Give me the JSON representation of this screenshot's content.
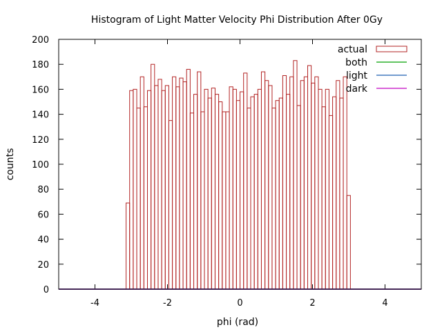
{
  "chart_data": {
    "type": "bar",
    "title": "Histogram of Light Matter Velocity Phi Distribution After 0Gy",
    "xlabel": "phi (rad)",
    "ylabel": "counts",
    "xlim": [
      -5,
      5
    ],
    "ylim": [
      0,
      200
    ],
    "x_ticks": [
      "-4",
      "-2",
      "0",
      "2",
      "4"
    ],
    "x_tick_values": [
      -4,
      -2,
      0,
      2,
      4
    ],
    "y_ticks": [
      "0",
      "20",
      "40",
      "60",
      "80",
      "100",
      "120",
      "140",
      "160",
      "180",
      "200"
    ],
    "y_tick_values": [
      0,
      20,
      40,
      60,
      80,
      100,
      120,
      140,
      160,
      180,
      200
    ],
    "bin_start": -3.1416,
    "bin_width": 0.0982,
    "legend_position": "top-right",
    "series": [
      {
        "name": "actual",
        "color": "#b22222",
        "style": "histogram-outline",
        "values": [
          69,
          159,
          160,
          145,
          170,
          146,
          159,
          180,
          163,
          168,
          159,
          163,
          135,
          170,
          162,
          169,
          166,
          176,
          141,
          156,
          174,
          142,
          160,
          153,
          161,
          156,
          150,
          142,
          142,
          162,
          160,
          151,
          158,
          173,
          145,
          154,
          156,
          160,
          174,
          167,
          163,
          145,
          151,
          153,
          171,
          156,
          170,
          183,
          147,
          167,
          170,
          179,
          165,
          170,
          160,
          146,
          160,
          139,
          154,
          167,
          153,
          170,
          75
        ]
      },
      {
        "name": "both",
        "color": "#00a000",
        "style": "line",
        "values": [
          0
        ]
      },
      {
        "name": "light",
        "color": "#1f5fb0",
        "style": "line",
        "values": [
          0
        ]
      },
      {
        "name": "dark",
        "color": "#c000c0",
        "style": "line",
        "values": [
          0
        ]
      }
    ]
  }
}
